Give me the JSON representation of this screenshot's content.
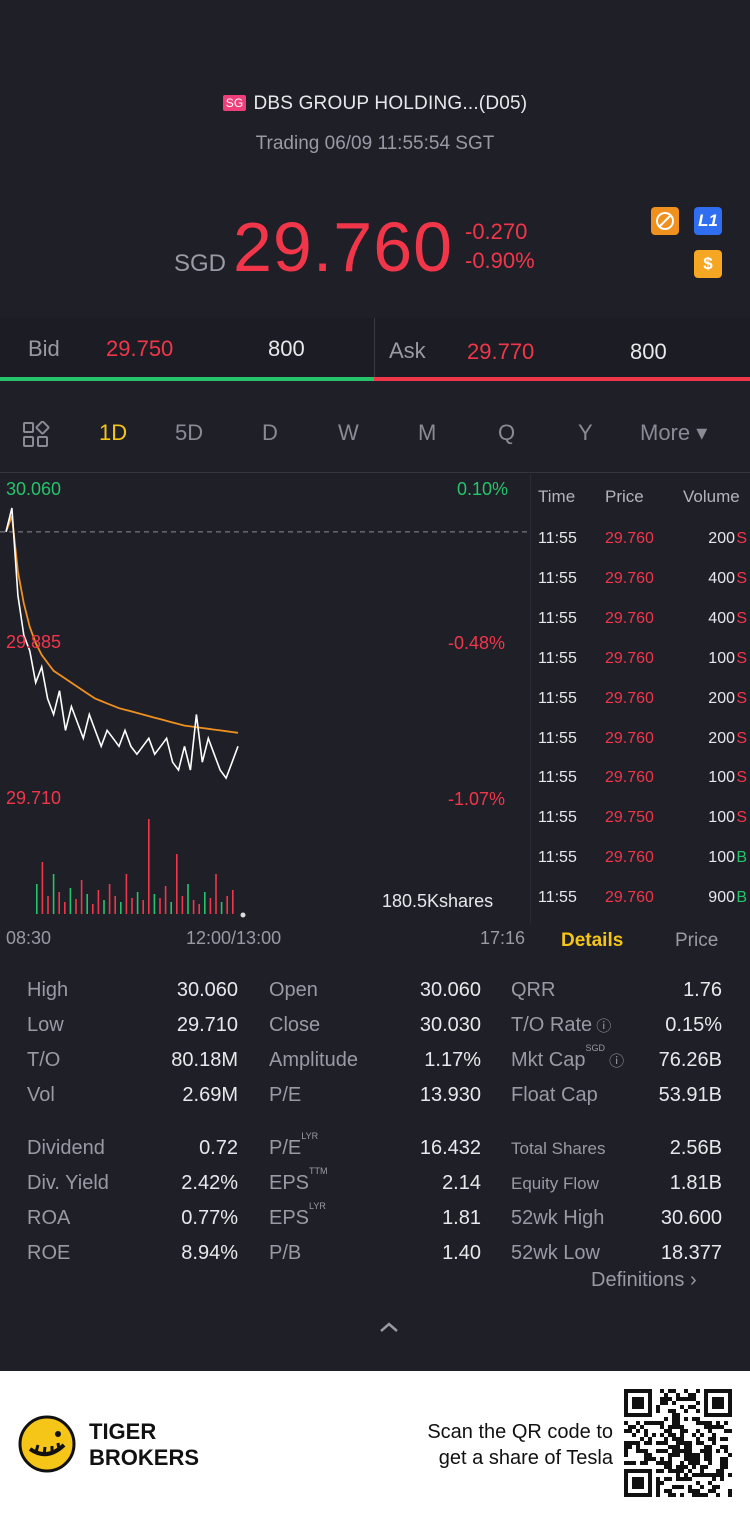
{
  "header": {
    "market_badge": "SG",
    "title": "DBS GROUP HOLDING...(D05)",
    "status": "Trading 06/09 11:55:54 SGT"
  },
  "quote": {
    "currency": "SGD",
    "price": "29.760",
    "change": "-0.270",
    "change_pct": "-0.90%",
    "icons": [
      "no-margin-icon",
      "level1-icon",
      "dollar-icon"
    ]
  },
  "bid_ask": {
    "bid_label": "Bid",
    "bid_price": "29.750",
    "bid_size": "800",
    "ask_label": "Ask",
    "ask_price": "29.770",
    "ask_size": "800"
  },
  "tabs": [
    "1D",
    "5D",
    "D",
    "W",
    "M",
    "Q",
    "Y",
    "More ▾"
  ],
  "active_tab": "1D",
  "chart_data": {
    "type": "line",
    "y_high_label": "30.060",
    "y_mid_label": "29.885",
    "y_low_label": "29.710",
    "pct_high": "0.10%",
    "pct_mid": "-0.48%",
    "pct_low": "-1.07%",
    "x_labels": [
      "08:30",
      "12:00/13:00",
      "17:16"
    ],
    "volume_label": "180.5Kshares",
    "ylim": [
      29.71,
      30.06
    ],
    "series": [
      {
        "name": "price",
        "color": "#ffffff",
        "values": [
          30.03,
          30.06,
          29.95,
          29.9,
          29.88,
          29.84,
          29.86,
          29.82,
          29.8,
          29.83,
          29.78,
          29.81,
          29.79,
          29.77,
          29.8,
          29.78,
          29.76,
          29.78,
          29.77,
          29.76,
          29.78,
          29.76,
          29.75,
          29.76,
          29.77,
          29.75,
          29.76,
          29.77,
          29.74,
          29.73,
          29.76,
          29.73,
          29.8,
          29.74,
          29.77,
          29.75,
          29.73,
          29.72,
          29.74,
          29.76
        ]
      },
      {
        "name": "avg",
        "color": "#f0901e",
        "values": [
          30.03,
          30.05,
          29.98,
          29.94,
          29.91,
          29.89,
          29.875,
          29.865,
          29.855,
          29.85,
          29.845,
          29.84,
          29.835,
          29.83,
          29.825,
          29.82,
          29.817,
          29.814,
          29.811,
          29.808,
          29.806,
          29.804,
          29.802,
          29.8,
          29.798,
          29.796,
          29.794,
          29.792,
          29.79,
          29.788,
          29.786,
          29.785,
          29.784,
          29.783,
          29.782,
          29.781,
          29.78,
          29.779,
          29.778,
          29.777
        ]
      }
    ],
    "prev_close": 30.03
  },
  "trades": {
    "headers": [
      "Time",
      "Price",
      "Volume"
    ],
    "rows": [
      {
        "time": "11:55",
        "price": "29.760",
        "volume": "200",
        "side": "S"
      },
      {
        "time": "11:55",
        "price": "29.760",
        "volume": "400",
        "side": "S"
      },
      {
        "time": "11:55",
        "price": "29.760",
        "volume": "400",
        "side": "S"
      },
      {
        "time": "11:55",
        "price": "29.760",
        "volume": "100",
        "side": "S"
      },
      {
        "time": "11:55",
        "price": "29.760",
        "volume": "200",
        "side": "S"
      },
      {
        "time": "11:55",
        "price": "29.760",
        "volume": "200",
        "side": "S"
      },
      {
        "time": "11:55",
        "price": "29.760",
        "volume": "100",
        "side": "S"
      },
      {
        "time": "11:55",
        "price": "29.750",
        "volume": "100",
        "side": "S"
      },
      {
        "time": "11:55",
        "price": "29.760",
        "volume": "100",
        "side": "B"
      },
      {
        "time": "11:55",
        "price": "29.760",
        "volume": "900",
        "side": "B"
      }
    ],
    "tab_details": "Details",
    "tab_price": "Price"
  },
  "stats": {
    "col1": [
      {
        "label": "High",
        "value": "30.060"
      },
      {
        "label": "Low",
        "value": "29.710"
      },
      {
        "label": "T/O",
        "value": "80.18M"
      },
      {
        "label": "Vol",
        "value": "2.69M"
      },
      {
        "label": "Dividend",
        "value": "0.72"
      },
      {
        "label": "Div. Yield",
        "value": "2.42%"
      },
      {
        "label": "ROA",
        "value": "0.77%"
      },
      {
        "label": "ROE",
        "value": "8.94%"
      }
    ],
    "col2": [
      {
        "label": "Open",
        "value": "30.060",
        "sup": ""
      },
      {
        "label": "Close",
        "value": "30.030",
        "sup": ""
      },
      {
        "label": "Amplitude",
        "value": "1.17%",
        "sup": ""
      },
      {
        "label": "P/E",
        "value": "13.930",
        "sup": ""
      },
      {
        "label": "P/E",
        "value": "16.432",
        "sup": "LYR"
      },
      {
        "label": "EPS",
        "value": "2.14",
        "sup": "TTM"
      },
      {
        "label": "EPS",
        "value": "1.81",
        "sup": "LYR"
      },
      {
        "label": "P/B",
        "value": "1.40",
        "sup": ""
      }
    ],
    "col3": [
      {
        "label": "QRR",
        "value": "1.76",
        "sup": ""
      },
      {
        "label": "T/O Rate",
        "value": "0.15%",
        "sup": ""
      },
      {
        "label": "Mkt Cap",
        "value": "76.26B",
        "sup": "SGD"
      },
      {
        "label": "Float Cap",
        "value": "53.91B",
        "sup": ""
      },
      {
        "label": "Total Shares",
        "value": "2.56B",
        "sup": ""
      },
      {
        "label": "Equity Flow",
        "value": "1.81B",
        "sup": ""
      },
      {
        "label": "52wk High",
        "value": "30.600",
        "sup": ""
      },
      {
        "label": "52wk Low",
        "value": "18.377",
        "sup": ""
      }
    ],
    "definitions": "Definitions"
  },
  "footer": {
    "brand_line1": "TIGER",
    "brand_line2": "BROKERS",
    "promo_line1": "Scan the QR code to",
    "promo_line2": "get a share of Tesla"
  },
  "colors": {
    "up": "#27c36a",
    "down": "#f2364a",
    "accent": "#f5c518",
    "avg_line": "#f0901e"
  }
}
